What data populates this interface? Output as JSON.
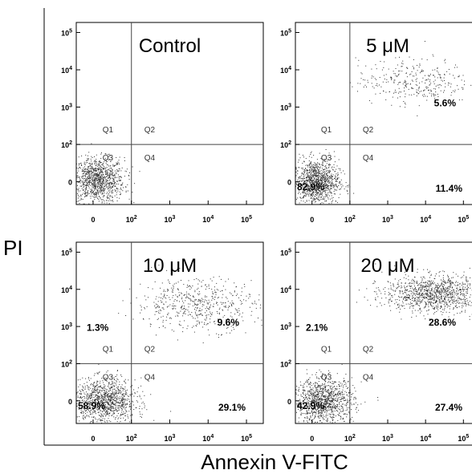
{
  "figure": {
    "y_axis_label": "PI",
    "x_axis_label": "Annexin V-FITC"
  },
  "chart_data": [
    {
      "type": "scatter",
      "title": "Control",
      "x_ticks": [
        "0",
        "10^2",
        "10^3",
        "10^4",
        "10^5"
      ],
      "y_ticks": [
        "0",
        "10^2",
        "10^3",
        "10^4",
        "10^5"
      ],
      "quadrant_names": [
        "Q1",
        "Q2",
        "Q3",
        "Q4"
      ],
      "quadrant_percentages": {
        "Q1": "",
        "Q2": "",
        "Q3": "",
        "Q4": ""
      },
      "populations": [
        {
          "x": 0.1,
          "y": 0.05,
          "spread_x": 0.7,
          "spread_y": 0.6,
          "density": "dense"
        }
      ]
    },
    {
      "type": "scatter",
      "title": "5 μM",
      "x_ticks": [
        "0",
        "10^2",
        "10^3",
        "10^4",
        "10^5"
      ],
      "y_ticks": [
        "0",
        "10^2",
        "10^3",
        "10^4",
        "10^5"
      ],
      "quadrant_names": [
        "Q1",
        "Q2",
        "Q3",
        "Q4"
      ],
      "quadrant_percentages": {
        "Q1": "",
        "Q2": "5.6%",
        "Q3": "82.9%",
        "Q4": "11.4%"
      },
      "populations": [
        {
          "x": 0.1,
          "y": 0.0,
          "spread_x": 0.6,
          "spread_y": 0.6,
          "density": "dense"
        },
        {
          "x": 2.7,
          "y": 2.7,
          "spread_x": 1.5,
          "spread_y": 0.6,
          "density": "sparse"
        }
      ]
    },
    {
      "type": "scatter",
      "title": "10 μM",
      "x_ticks": [
        "0",
        "10^2",
        "10^3",
        "10^4",
        "10^5"
      ],
      "y_ticks": [
        "0",
        "10^2",
        "10^3",
        "10^4",
        "10^5"
      ],
      "quadrant_names": [
        "Q1",
        "Q2",
        "Q3",
        "Q4"
      ],
      "quadrant_percentages": {
        "Q1": "1.3%",
        "Q2": "9.6%",
        "Q3": "58.9%",
        "Q4": "29.1%"
      },
      "populations": [
        {
          "x": 0.3,
          "y": 0.0,
          "spread_x": 0.8,
          "spread_y": 0.6,
          "density": "dense"
        },
        {
          "x": 2.7,
          "y": 2.6,
          "spread_x": 1.6,
          "spread_y": 0.7,
          "density": "medium"
        }
      ]
    },
    {
      "type": "scatter",
      "title": "20 μM",
      "x_ticks": [
        "0",
        "10^2",
        "10^3",
        "10^4",
        "10^5"
      ],
      "y_ticks": [
        "0",
        "10^2",
        "10^3",
        "10^4",
        "10^5"
      ],
      "quadrant_names": [
        "Q1",
        "Q2",
        "Q3",
        "Q4"
      ],
      "quadrant_percentages": {
        "Q1": "2.1%",
        "Q2": "28.6%",
        "Q3": "42.9%",
        "Q4": "27.4%"
      },
      "populations": [
        {
          "x": 0.3,
          "y": 0.0,
          "spread_x": 0.8,
          "spread_y": 0.6,
          "density": "dense"
        },
        {
          "x": 3.2,
          "y": 2.9,
          "spread_x": 1.3,
          "spread_y": 0.5,
          "density": "dense"
        }
      ]
    }
  ]
}
